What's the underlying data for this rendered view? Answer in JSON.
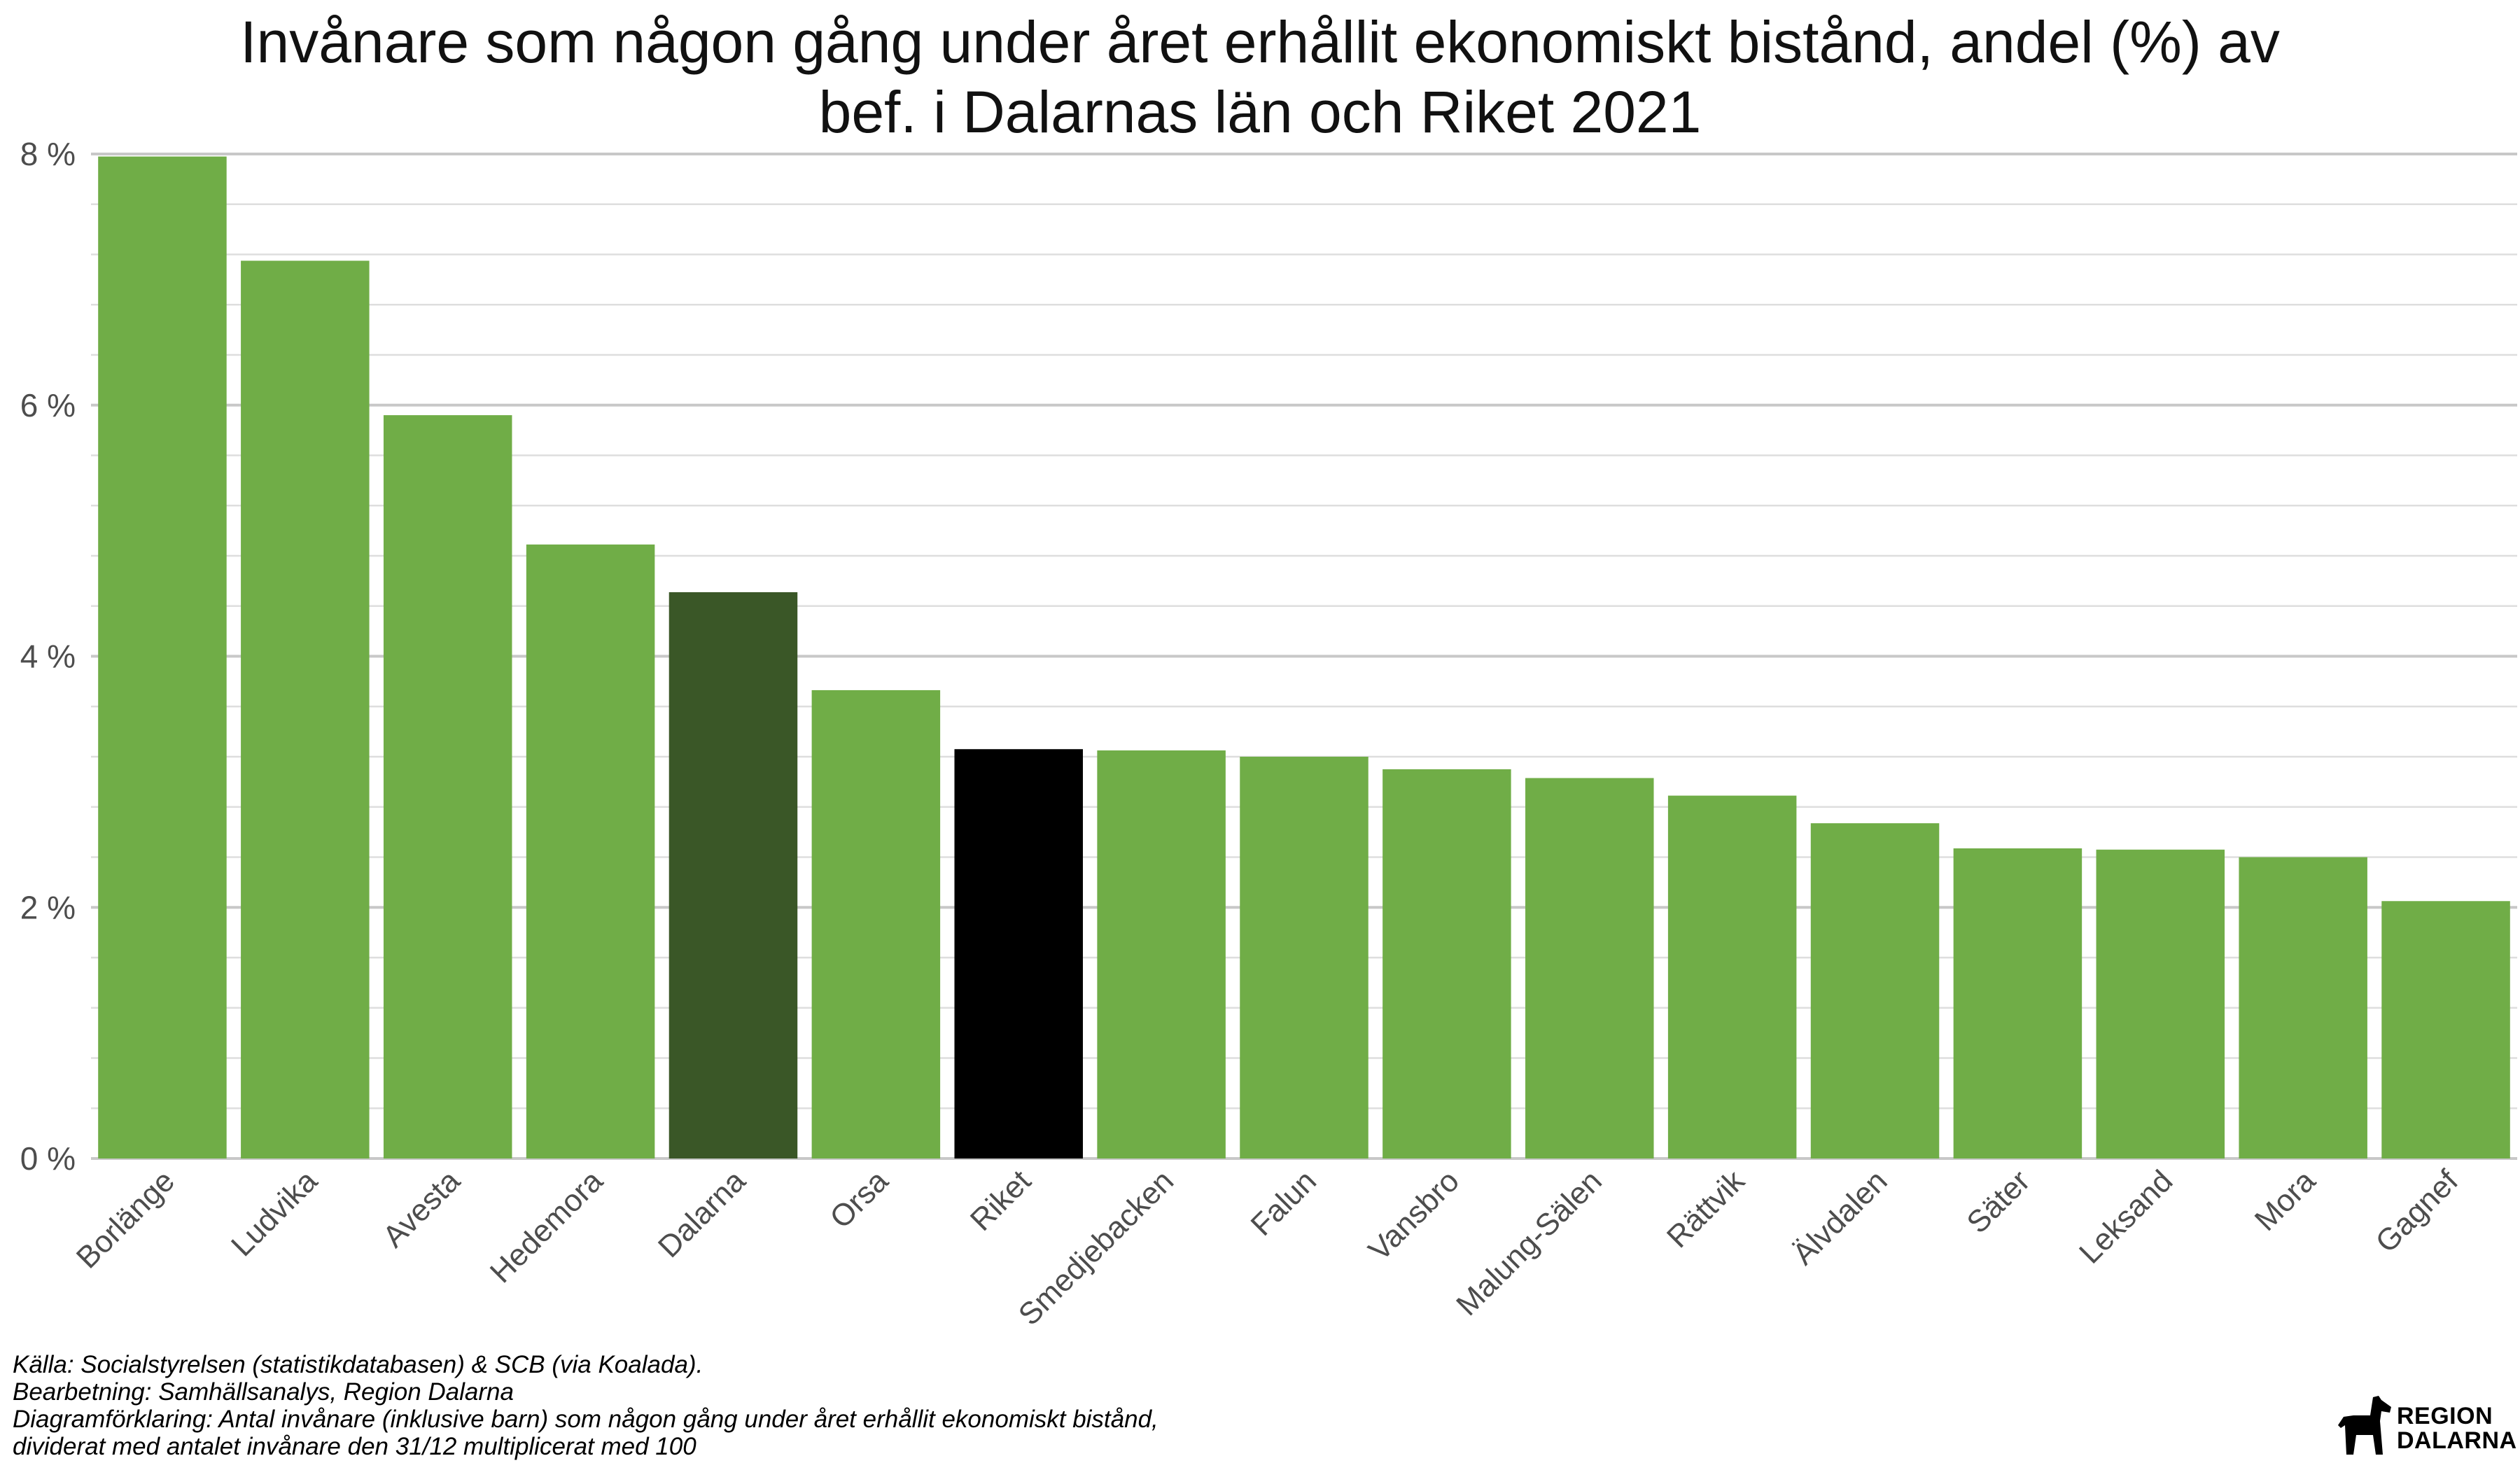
{
  "chart_data": {
    "type": "bar",
    "title_lines": [
      "Invånare som någon gång under året erhållit ekonomiskt bistånd, andel (%) av",
      "bef. i Dalarnas län och Riket 2021"
    ],
    "categories": [
      "Borlänge",
      "Ludvika",
      "Avesta",
      "Hedemora",
      "Dalarna",
      "Orsa",
      "Riket",
      "Smedjebacken",
      "Falun",
      "Vansbro",
      "Malung-Sälen",
      "Rättvik",
      "Älvdalen",
      "Säter",
      "Leksand",
      "Mora",
      "Gagnef"
    ],
    "values": [
      7.98,
      7.15,
      5.92,
      4.89,
      4.51,
      3.73,
      3.26,
      3.25,
      3.2,
      3.1,
      3.03,
      2.89,
      2.67,
      2.47,
      2.46,
      2.4,
      2.05
    ],
    "bar_colors": [
      "#70ad47",
      "#70ad47",
      "#70ad47",
      "#70ad47",
      "#3a5727",
      "#70ad47",
      "#000000",
      "#70ad47",
      "#70ad47",
      "#70ad47",
      "#70ad47",
      "#70ad47",
      "#70ad47",
      "#70ad47",
      "#70ad47",
      "#70ad47",
      "#70ad47"
    ],
    "ylim": [
      0,
      8
    ],
    "y_major_ticks": [
      0,
      2,
      4,
      6,
      8
    ],
    "y_minor_step": 0.4,
    "y_tick_suffix": " %",
    "grid": true,
    "legend": "none"
  },
  "footer": {
    "line1": "Källa: Socialstyrelsen (statistikdatabasen) & SCB (via Koalada).",
    "line2": "Bearbetning: Samhällsanalys, Region Dalarna",
    "line3": "Diagramförklaring: Antal invånare (inklusive barn) som någon gång under året erhållit ekonomiskt bistånd,",
    "line4": "dividerat med antalet invånare den 31/12 multiplicerat med 100"
  },
  "logo": {
    "icon": "dala-horse-icon",
    "line1": "REGION",
    "line2": "DALARNA"
  }
}
